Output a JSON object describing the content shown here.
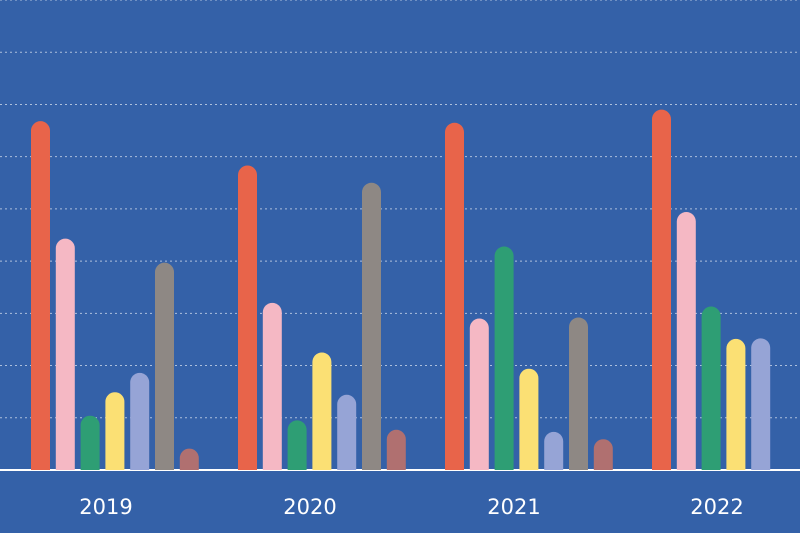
{
  "chart_data": {
    "type": "bar",
    "title": "",
    "xlabel": "",
    "ylabel": "",
    "categories": [
      "2019",
      "2020",
      "2021",
      "2022"
    ],
    "ylim": [
      0,
      9
    ],
    "grid": true,
    "legend": "none",
    "series": [
      {
        "color": "#e8644a",
        "values": [
          6.68,
          5.83,
          6.65,
          6.9
        ]
      },
      {
        "color": "#f5b8c4",
        "values": [
          4.43,
          3.2,
          2.9,
          4.94
        ]
      },
      {
        "color": "#2e9e74",
        "values": [
          1.04,
          0.95,
          4.28,
          3.13
        ]
      },
      {
        "color": "#fbe074",
        "values": [
          1.49,
          2.25,
          1.94,
          2.51
        ]
      },
      {
        "color": "#96a4d6",
        "values": [
          1.86,
          1.44,
          0.73,
          2.52
        ]
      },
      {
        "color": "#8e8884",
        "values": [
          3.97,
          5.5,
          2.92,
          null
        ]
      },
      {
        "color": "#b07070",
        "values": [
          0.41,
          0.77,
          0.59,
          null
        ]
      }
    ]
  }
}
